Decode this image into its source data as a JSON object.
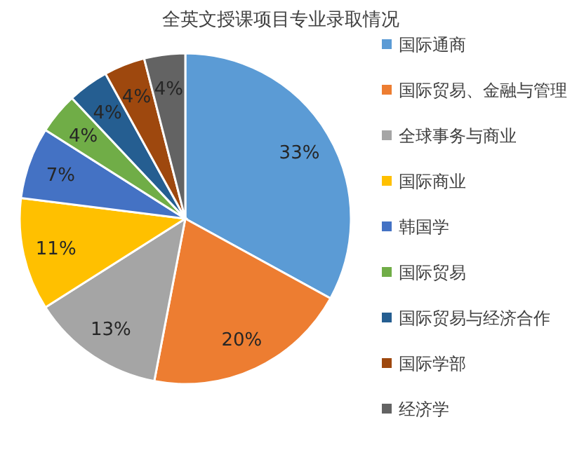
{
  "chart_data": {
    "type": "pie",
    "title": "全英文授课项目专业录取情况",
    "categories": [
      "国际通商",
      "国际贸易、金融与管理",
      "全球事务与商业",
      "国际商业",
      "韩国学",
      "国际贸易",
      "国际贸易与经济合作",
      "国际学部",
      "经济学"
    ],
    "values": [
      33,
      20,
      13,
      11,
      7,
      4,
      4,
      4,
      4
    ],
    "value_labels": [
      "33%",
      "20%",
      "13%",
      "11%",
      "7%",
      "4%",
      "4%",
      "4%",
      "4%"
    ],
    "colors": [
      "#5b9bd5",
      "#ed7d31",
      "#a5a5a5",
      "#ffc000",
      "#4472c4",
      "#70ad47",
      "#255e91",
      "#9e480e",
      "#636363"
    ],
    "legend": "right"
  }
}
